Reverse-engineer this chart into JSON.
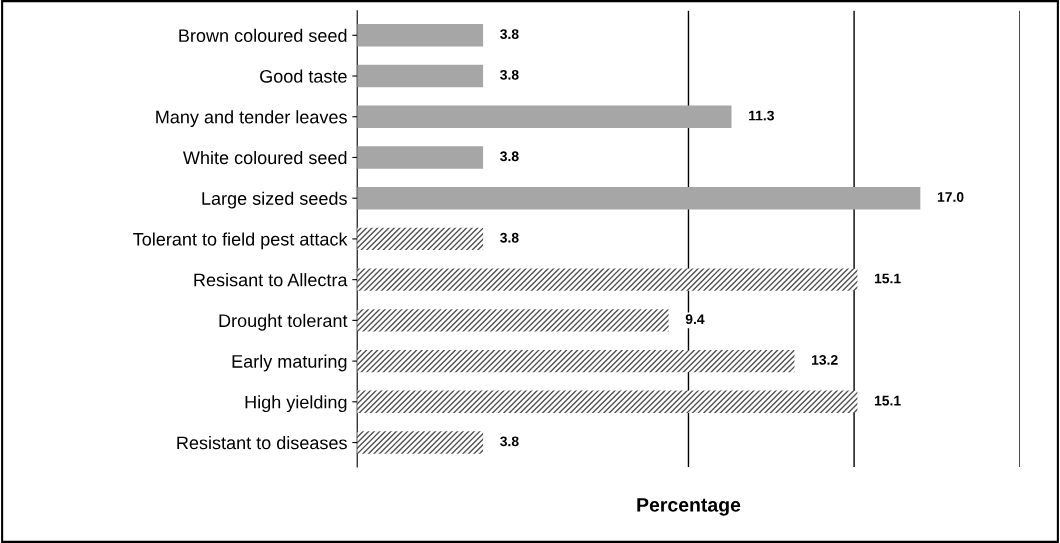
{
  "chart_data": {
    "type": "bar",
    "orientation": "horizontal",
    "xlabel": "Percentage",
    "categories": [
      "Brown coloured seed",
      "Good taste",
      "Many and tender leaves",
      "White coloured seed",
      "Large sized seeds",
      "Tolerant to field pest attack",
      "Resisant to Allectra",
      "Drought tolerant",
      "Early maturing",
      "High yielding",
      "Resistant to diseases"
    ],
    "series": [
      {
        "color": "#a6a6a6",
        "values": [
          3.8,
          3.8,
          11.3,
          3.8,
          17.0,
          null,
          null,
          null,
          null,
          null,
          null
        ],
        "value_labels": [
          "3.8",
          "3.8",
          "11.3",
          "3.8",
          "17.0",
          null,
          null,
          null,
          null,
          null,
          null
        ]
      },
      {
        "color": "#505050",
        "values": [
          null,
          null,
          null,
          null,
          null,
          3.8,
          15.1,
          9.4,
          13.2,
          15.1,
          3.8
        ],
        "value_labels": [
          null,
          null,
          null,
          null,
          null,
          "3.8",
          "15.1",
          "9.4",
          "13.2",
          "15.1",
          "3.8"
        ]
      }
    ],
    "xlim": [
      0,
      20
    ],
    "ref_lines": [
      {
        "axis": "x",
        "value": 10,
        "color": "#000000"
      },
      {
        "axis": "x",
        "value": 15,
        "color": "#000000"
      },
      {
        "axis": "x",
        "value": 20,
        "color": "#000000"
      }
    ],
    "tick_labels": "y"
  }
}
